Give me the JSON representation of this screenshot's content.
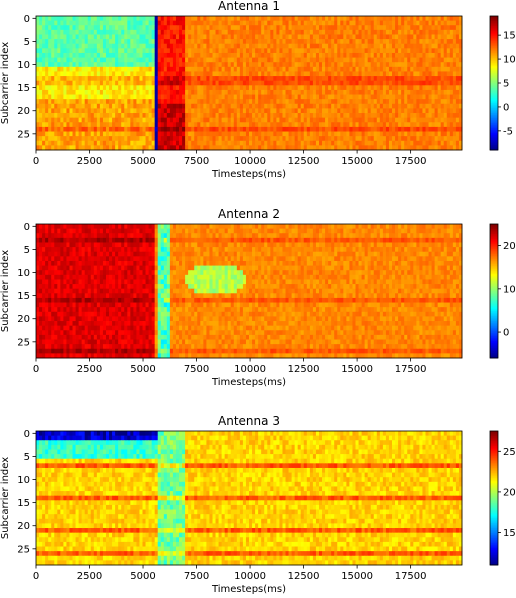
{
  "chart_data": [
    {
      "type": "heatmap",
      "title": "Antenna 1",
      "xlabel": "Timesteps(ms)",
      "ylabel": "Subcarrier index",
      "xlim": [
        0,
        19900
      ],
      "ylim": [
        28.5,
        -0.5
      ],
      "x_ticks": [
        0,
        2500,
        5000,
        7500,
        10000,
        12500,
        15000,
        17500
      ],
      "y_ticks": [
        0,
        5,
        10,
        15,
        20,
        25
      ],
      "colorbar": {
        "colormap": "jet",
        "vmin": -9,
        "vmax": 19,
        "ticks": [
          -5,
          0,
          5,
          10,
          15
        ]
      },
      "grid": false,
      "description": "Mostly 10-15 values; low (~0-5) region in top rows for t<5600; sharp low vertical line near t=5600; high (~15-19) band around t=5700-7000, strongest in lower rows"
    },
    {
      "type": "heatmap",
      "title": "Antenna 2",
      "xlabel": "Timesteps(ms)",
      "ylabel": "Subcarrier index",
      "xlim": [
        0,
        19900
      ],
      "ylim": [
        28.5,
        -0.5
      ],
      "x_ticks": [
        0,
        2500,
        5000,
        7500,
        10000,
        12500,
        15000,
        17500
      ],
      "y_ticks": [
        0,
        5,
        10,
        15,
        20,
        25
      ],
      "colorbar": {
        "colormap": "jet",
        "vmin": -6,
        "vmax": 25,
        "ticks": [
          0,
          10,
          20
        ]
      },
      "grid": false,
      "description": "High (~20-25) for t<5600; cyan/low dip near t=5800-6200; moderate 15-20 afterwards with a yellow/green (~10-13) blob around t=8500, rows 9-14"
    },
    {
      "type": "heatmap",
      "title": "Antenna 3",
      "xlabel": "Timesteps(ms)",
      "ylabel": "Subcarrier index",
      "xlim": [
        0,
        19900
      ],
      "ylim": [
        28.5,
        -0.5
      ],
      "x_ticks": [
        0,
        2500,
        5000,
        7500,
        10000,
        12500,
        15000,
        17500
      ],
      "y_ticks": [
        0,
        5,
        10,
        15,
        20,
        25
      ],
      "colorbar": {
        "colormap": "jet",
        "vmin": 11,
        "vmax": 27.5,
        "ticks": [
          15,
          20,
          25
        ]
      },
      "grid": false,
      "description": "Blue (~12-15) in top rows 0-1 for t<5700; mostly 21-25 elsewhere; greenish band near t=6000-7000"
    }
  ]
}
